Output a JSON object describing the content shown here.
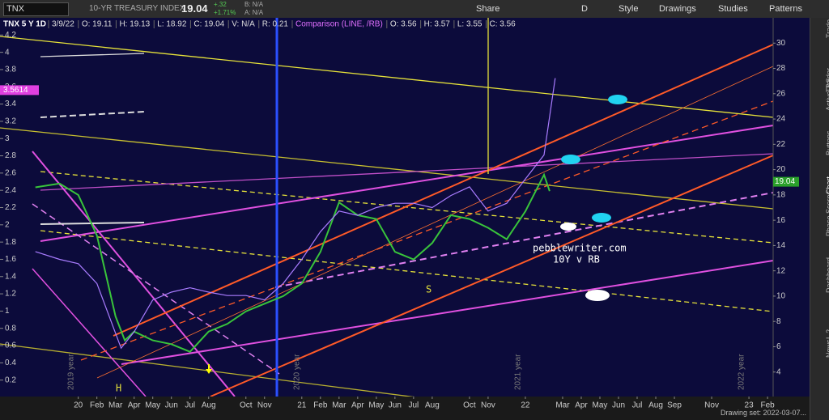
{
  "toolbar": {
    "symbol": "TNX",
    "description": "10-YR TREASURY INDEX",
    "last": "19.04",
    "change": "+.32",
    "change_pct": "+1.71%",
    "bid": "B: N/A",
    "ask": "A: N/A",
    "buttons": [
      "Share",
      "D",
      "Style",
      "Drawings",
      "Studies",
      "Patterns"
    ]
  },
  "sidebar": [
    "Trade",
    "T&S",
    "Active Trader",
    "Buttons",
    "Chart",
    "Phase Scores",
    "Dashboard",
    "L 2",
    "News"
  ],
  "legend": {
    "study": "TNX 5 Y 1D",
    "date": "3/9/22",
    "fields": [
      "O: 19.11",
      "H: 19.13",
      "L: 18.92",
      "C: 19.04",
      "V: N/A",
      "R: 0.21"
    ],
    "comparison": "Comparison (LINE, /RB)",
    "comparison_fields": [
      "O: 3.56",
      "H: 3.57",
      "L: 3.55",
      "C: 3.56"
    ]
  },
  "chart_data": {
    "type": "line",
    "xlim": [
      7.8,
      49.3
    ],
    "xticks": [
      {
        "value": 12,
        "label": "20"
      },
      {
        "value": 13,
        "label": "Feb"
      },
      {
        "value": 14,
        "label": "Mar"
      },
      {
        "value": 15,
        "label": "Apr"
      },
      {
        "value": 16,
        "label": "May"
      },
      {
        "value": 17,
        "label": "Jun"
      },
      {
        "value": 18,
        "label": "Jul"
      },
      {
        "value": 19,
        "label": "Aug"
      },
      {
        "value": 21,
        "label": "Oct"
      },
      {
        "value": 22,
        "label": "Nov"
      },
      {
        "value": 24,
        "label": "21"
      },
      {
        "value": 25,
        "label": "Feb"
      },
      {
        "value": 26,
        "label": "Mar"
      },
      {
        "value": 27,
        "label": "Apr"
      },
      {
        "value": 28,
        "label": "May"
      },
      {
        "value": 29,
        "label": "Jun"
      },
      {
        "value": 30,
        "label": "Jul"
      },
      {
        "value": 31,
        "label": "Aug"
      },
      {
        "value": 33,
        "label": "Oct"
      },
      {
        "value": 34,
        "label": "Nov"
      },
      {
        "value": 36,
        "label": "22"
      },
      {
        "value": 38,
        "label": "Mar"
      },
      {
        "value": 39,
        "label": "Apr"
      },
      {
        "value": 40,
        "label": "May"
      },
      {
        "value": 41,
        "label": "Jun"
      },
      {
        "value": 42,
        "label": "Jul"
      },
      {
        "value": 43,
        "label": "Aug"
      },
      {
        "value": 44,
        "label": "Sep"
      },
      {
        "value": 46,
        "label": "Nov"
      },
      {
        "value": 48,
        "label": "23"
      },
      {
        "value": 49,
        "label": "Feb"
      }
    ],
    "ylim": [
      0,
      4.4
    ],
    "yticks": [
      4.2,
      4,
      3.8,
      3.6,
      3.4,
      3.2,
      3,
      2.8,
      2.6,
      2.4,
      2.2,
      2,
      1.8,
      1.6,
      1.4,
      1.2,
      1,
      0.8,
      0.6,
      0.4,
      0.2
    ],
    "y2lim": [
      2,
      32
    ],
    "y2ticks": [
      30,
      28,
      26,
      24,
      22,
      20,
      18,
      16,
      14,
      12,
      10,
      8,
      6,
      4
    ],
    "series": [
      {
        "name": "TNX",
        "color": "#39c43b",
        "axis": "y2",
        "x": [
          9.7,
          11,
          12,
          13,
          14,
          14.5,
          15,
          16,
          17,
          18,
          19,
          20,
          21,
          22,
          23,
          24,
          25,
          26,
          27,
          28,
          29,
          30,
          31,
          32,
          33,
          34,
          35,
          36,
          37,
          37.3
        ],
        "values": [
          18.6,
          18.9,
          18,
          14.8,
          8.4,
          6.5,
          7.2,
          6.5,
          6.2,
          5.6,
          7.2,
          7.8,
          8.8,
          9.4,
          10,
          11,
          13.5,
          17.4,
          16.4,
          16.1,
          13.5,
          12.9,
          14.2,
          16.4,
          16.1,
          15.4,
          14.5,
          16.7,
          19.6,
          18.3
        ]
      },
      {
        "name": "/RB",
        "color": "#a97cff",
        "x": [
          9.7,
          11,
          12,
          13,
          14.3,
          15,
          16,
          17,
          18,
          19,
          20,
          21,
          22,
          23,
          24,
          25,
          26,
          27,
          28,
          29,
          30,
          31,
          32,
          33,
          34,
          35,
          36,
          37,
          37.6
        ],
        "values": [
          1.69,
          1.6,
          1.55,
          1.32,
          0.57,
          0.76,
          1.13,
          1.22,
          1.27,
          1.22,
          1.18,
          1.18,
          1.13,
          1.32,
          1.6,
          1.92,
          2.16,
          2.11,
          2.2,
          2.25,
          2.25,
          2.2,
          2.34,
          2.44,
          2.16,
          2.25,
          2.53,
          2.81,
          3.7
        ]
      }
    ],
    "price_tags": {
      "y": 3.5614,
      "y2": 19.04
    },
    "annotations": [
      "pebblewriter.com",
      "10Y v RB",
      "H",
      "S"
    ],
    "year_markers": [
      "2019 year",
      "2020 year",
      "2021 year",
      "2022 year"
    ]
  },
  "footer": "Drawing set: 2022-03-07..."
}
